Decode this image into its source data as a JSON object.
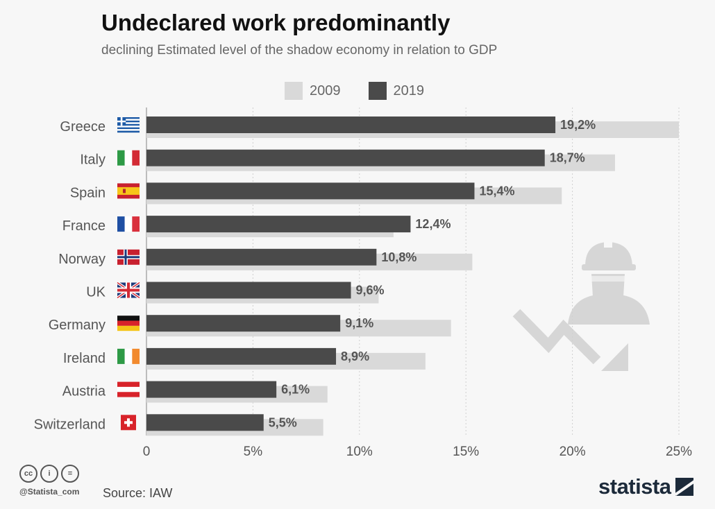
{
  "header": {
    "title": "Undeclared work predominantly",
    "subtitle": "declining Estimated level of the shadow economy in relation to GDP"
  },
  "legend": [
    {
      "label": "2009",
      "color": "#d9d9d9"
    },
    {
      "label": "2019",
      "color": "#4a4a4a"
    }
  ],
  "footer": {
    "cc_icons": [
      "cc-icon",
      "attribution-icon",
      "no-derivatives-icon"
    ],
    "cc_text": [
      "cc",
      "i",
      "="
    ],
    "handle": "@Statista_com",
    "source": "Source: IAW",
    "brand": "statista"
  },
  "chart_data": {
    "type": "bar",
    "orientation": "horizontal",
    "categories": [
      "Greece",
      "Italy",
      "Spain",
      "France",
      "Norway",
      "UK",
      "Germany",
      "Ireland",
      "Austria",
      "Switzerland"
    ],
    "flags": [
      "greece-flag-icon",
      "italy-flag-icon",
      "spain-flag-icon",
      "france-flag-icon",
      "norway-flag-icon",
      "uk-flag-icon",
      "germany-flag-icon",
      "ireland-flag-icon",
      "austria-flag-icon",
      "switzerland-flag-icon"
    ],
    "series": [
      {
        "name": "2009",
        "color": "#d9d9d9",
        "values": [
          25.0,
          22.0,
          19.5,
          11.6,
          15.3,
          10.9,
          14.3,
          13.1,
          8.5,
          8.3
        ]
      },
      {
        "name": "2019",
        "color": "#4a4a4a",
        "values": [
          19.2,
          18.7,
          15.4,
          12.4,
          10.8,
          9.6,
          9.1,
          8.9,
          6.1,
          5.5
        ]
      }
    ],
    "data_labels": [
      "19,2%",
      "18,7%",
      "15,4%",
      "12,4%",
      "10,8%",
      "9,6%",
      "9,1%",
      "8,9%",
      "6,1%",
      "5,5%"
    ],
    "xlim": [
      0,
      25
    ],
    "xticks": [
      0,
      5,
      10,
      15,
      20,
      25
    ],
    "xtick_labels": [
      "0",
      "5%",
      "10%",
      "15%",
      "20%",
      "25%"
    ],
    "grid": true,
    "legend_position": "top"
  }
}
